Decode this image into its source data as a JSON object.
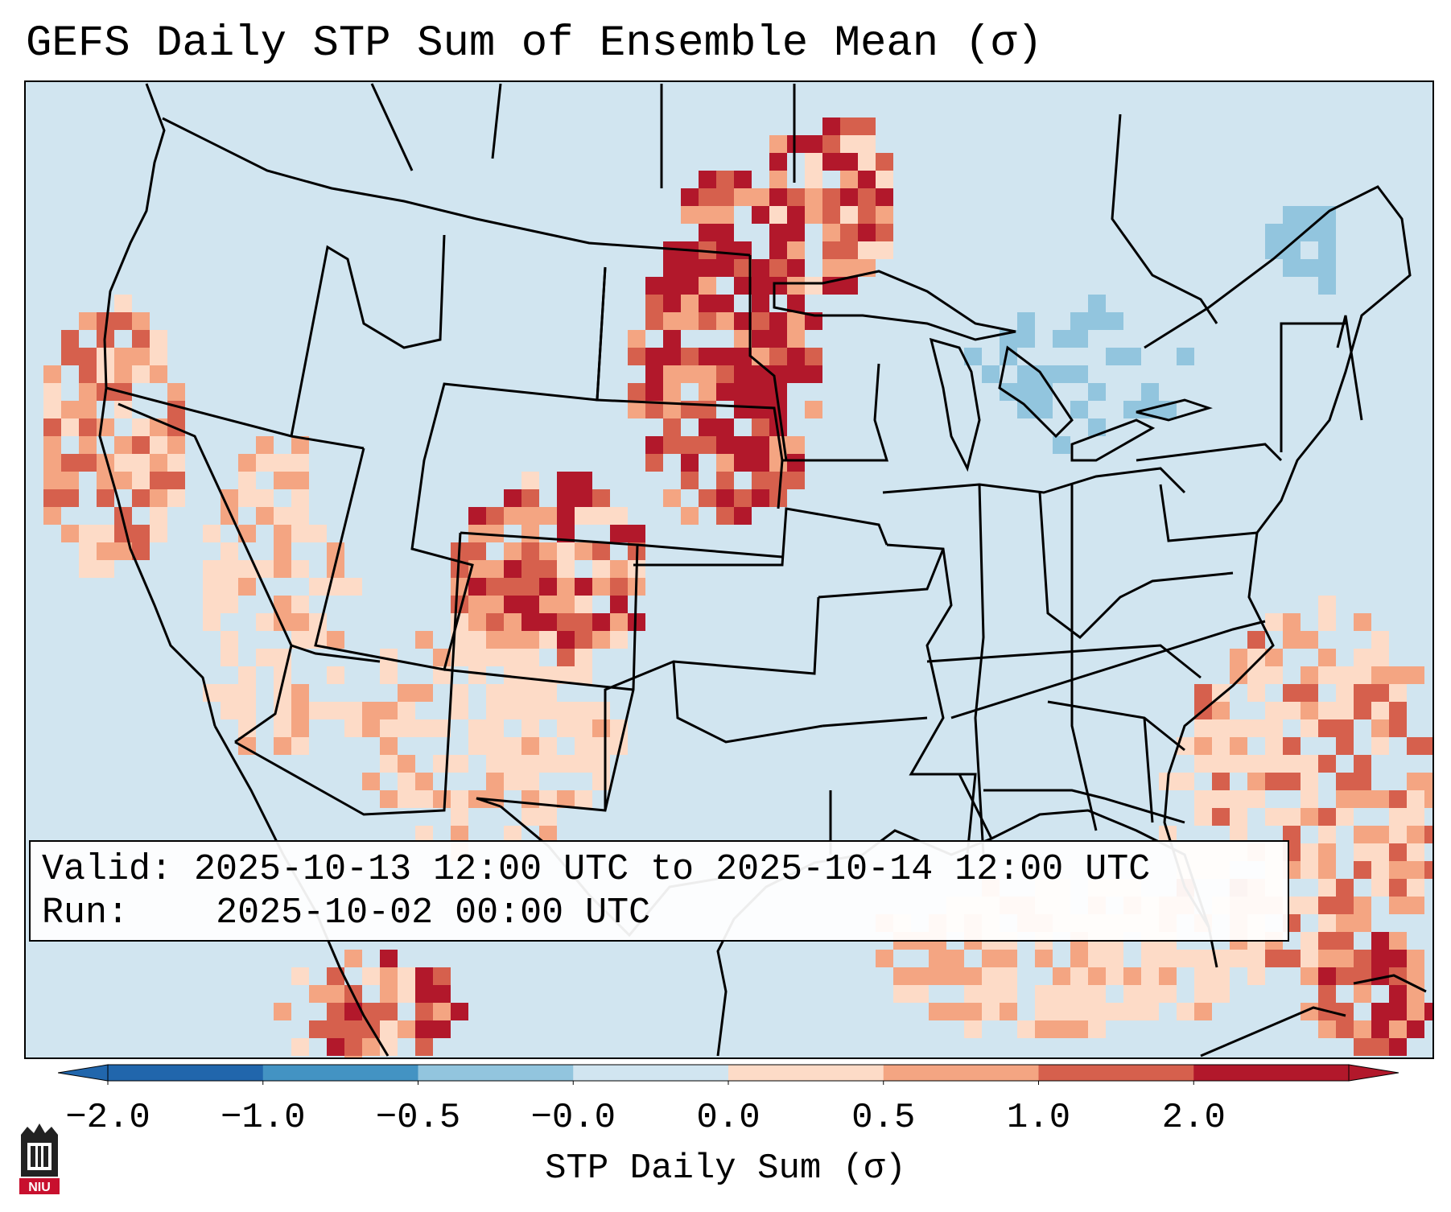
{
  "title": "GEFS Daily STP Sum of Ensemble Mean (σ)",
  "info": {
    "valid_label": "Valid:",
    "valid_value": "2025-10-13 12:00 UTC to 2025-10-14 12:00 UTC",
    "run_label": "Run:",
    "run_value": "2025-10-02 00:00 UTC"
  },
  "colorbar": {
    "label": "STP Daily Sum (σ)",
    "ticks": [
      "−2.0",
      "−1.0",
      "−0.5",
      "−0.0",
      "0.0",
      "0.5",
      "1.0",
      "2.0"
    ],
    "colors": [
      "#2166ac",
      "#4393c3",
      "#92c5de",
      "#d1e5f0",
      "#fddbc7",
      "#f4a582",
      "#d6604d",
      "#b2182b"
    ],
    "extend": "both"
  },
  "map": {
    "background_color": "#d1e5f0",
    "region": "Continental United States",
    "highlight_zones": [
      {
        "area": "Dakotas, Minnesota, Nebraska, Iowa",
        "level": 2.0
      },
      {
        "area": "Colorado, New Mexico",
        "level": 1.0
      },
      {
        "area": "California coast",
        "level": 0.5
      },
      {
        "area": "Western Atlantic",
        "level": 0.5
      },
      {
        "area": "Caribbean, Hispaniola",
        "level": 2.0
      },
      {
        "area": "Great Lakes, New England",
        "level": -0.5
      }
    ]
  },
  "logo": {
    "text": "NIU"
  }
}
